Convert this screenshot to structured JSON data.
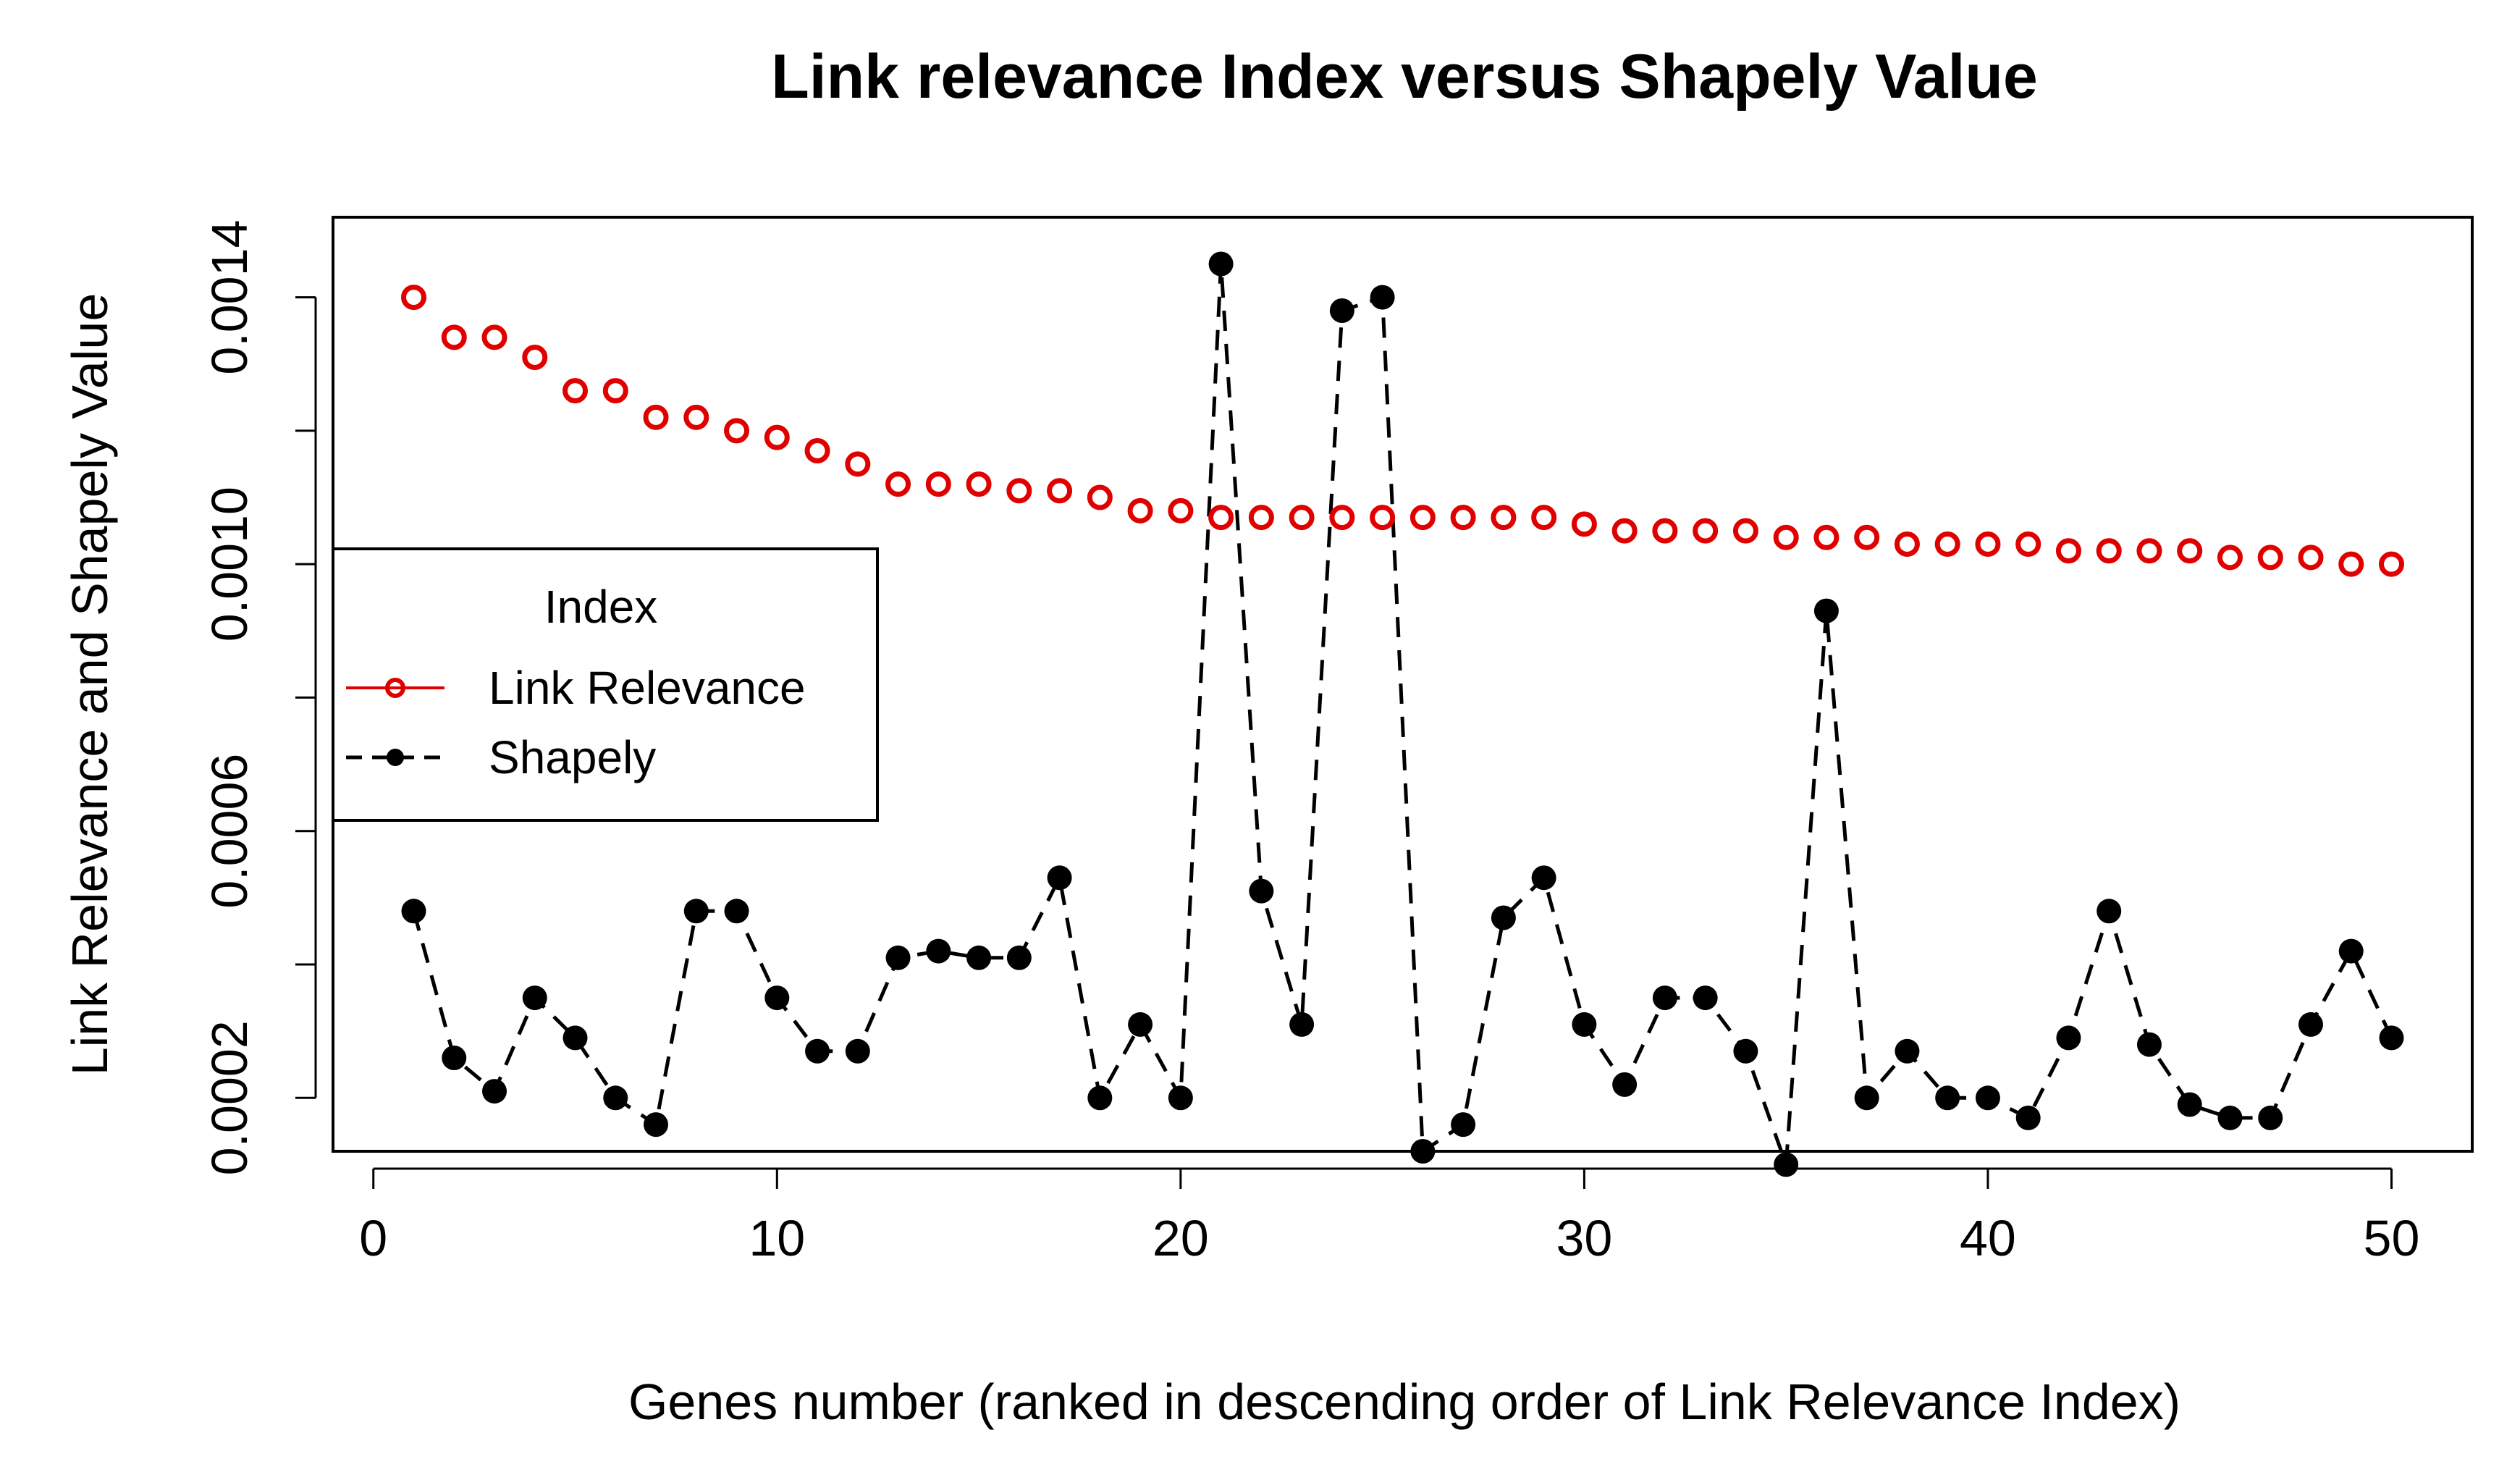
{
  "chart_data": {
    "type": "line",
    "title": "Link relevance Index versus Shapely Value",
    "xlabel": "Genes number (ranked in descending order of Link Relevance Index)",
    "ylabel": "Link Relevance and Shapely Value",
    "xlim": [
      -1,
      52
    ],
    "ylim": [
      0.00012,
      0.00152
    ],
    "x_ticks": [
      0,
      10,
      20,
      30,
      40,
      50
    ],
    "y_ticks": [
      0.0002,
      0.0004,
      0.0006,
      0.0008,
      0.001,
      0.0012,
      0.0014
    ],
    "y_tick_labels": [
      "0.0002",
      "",
      "0.0006",
      "",
      "0.0010",
      "",
      "0.0014"
    ],
    "legend": {
      "title": "Index",
      "position": "left",
      "entries": [
        "Link Relevance",
        "Shapely"
      ]
    },
    "x": [
      1,
      2,
      3,
      4,
      5,
      6,
      7,
      8,
      9,
      10,
      11,
      12,
      13,
      14,
      15,
      16,
      17,
      18,
      19,
      20,
      21,
      22,
      23,
      24,
      25,
      26,
      27,
      28,
      29,
      30,
      31,
      32,
      33,
      34,
      35,
      36,
      37,
      38,
      39,
      40,
      41,
      42,
      43,
      44,
      45,
      46,
      47,
      48,
      49,
      50
    ],
    "series": [
      {
        "name": "Link Relevance",
        "color": "#e00000",
        "marker": "open-circle",
        "line": "none",
        "values": [
          0.0014,
          0.00134,
          0.00134,
          0.00131,
          0.00126,
          0.00126,
          0.00122,
          0.00122,
          0.0012,
          0.00119,
          0.00117,
          0.00115,
          0.00112,
          0.00112,
          0.00112,
          0.00111,
          0.00111,
          0.0011,
          0.00108,
          0.00108,
          0.00107,
          0.00107,
          0.00107,
          0.00107,
          0.00107,
          0.00107,
          0.00107,
          0.00107,
          0.00107,
          0.00106,
          0.00105,
          0.00105,
          0.00105,
          0.00105,
          0.00104,
          0.00104,
          0.00104,
          0.00103,
          0.00103,
          0.00103,
          0.00103,
          0.00102,
          0.00102,
          0.00102,
          0.00102,
          0.00101,
          0.00101,
          0.00101,
          0.001,
          0.001
        ]
      },
      {
        "name": "Shapely",
        "color": "#000000",
        "marker": "filled-circle",
        "line": "dashed",
        "values": [
          0.00048,
          0.00026,
          0.00021,
          0.00035,
          0.00029,
          0.0002,
          0.00016,
          0.00048,
          0.00048,
          0.00035,
          0.00027,
          0.00027,
          0.00041,
          0.00042,
          0.00041,
          0.00041,
          0.00053,
          0.0002,
          0.00031,
          0.0002,
          0.00145,
          0.00051,
          0.00031,
          0.00138,
          0.0014,
          0.00012,
          0.00016,
          0.00047,
          0.00053,
          0.00031,
          0.00022,
          0.00035,
          0.00035,
          0.00027,
          0.0001,
          0.00093,
          0.0002,
          0.00027,
          0.0002,
          0.0002,
          0.00017,
          0.00029,
          0.00048,
          0.00028,
          0.00019,
          0.00017,
          0.00017,
          0.00031,
          0.00042,
          0.00029
        ]
      }
    ]
  }
}
